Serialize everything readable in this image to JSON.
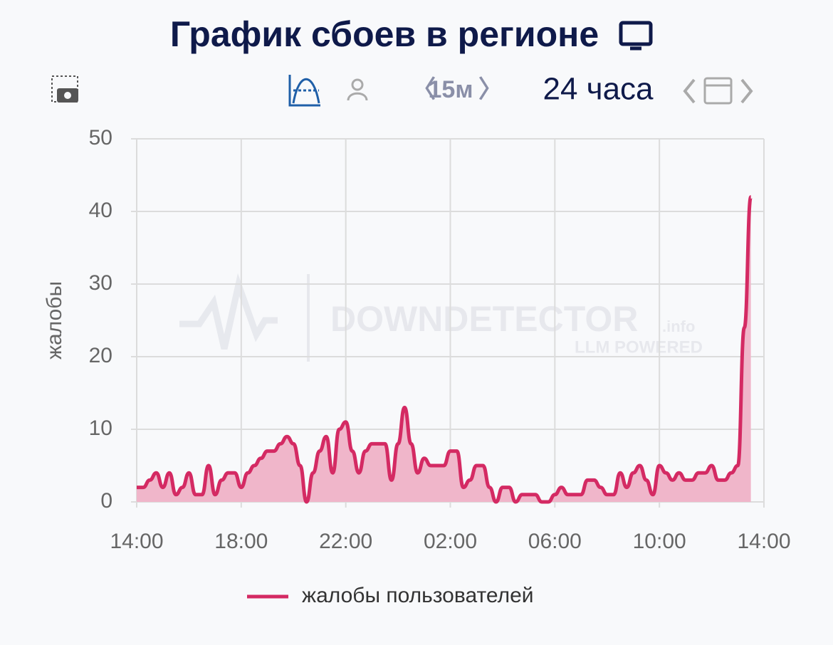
{
  "toolbar": {
    "interval": "15м",
    "range": "24 часа"
  },
  "chart_data": {
    "type": "line",
    "title": "График сбоев в регионе",
    "y_label": "жалобы",
    "watermark": {
      "brand": "DOWNDETECTOR",
      "suffix": ".info",
      "tagline": "LLM POWERED"
    },
    "categories": [
      "14:00",
      null,
      null,
      null,
      null,
      null,
      null,
      null,
      null,
      null,
      null,
      null,
      null,
      null,
      null,
      null,
      "18:00",
      null,
      null,
      null,
      null,
      null,
      null,
      null,
      null,
      null,
      null,
      null,
      null,
      null,
      null,
      null,
      "22:00",
      null,
      null,
      null,
      null,
      null,
      null,
      null,
      null,
      null,
      null,
      null,
      null,
      null,
      null,
      null,
      "02:00",
      null,
      null,
      null,
      null,
      null,
      null,
      null,
      null,
      null,
      null,
      null,
      null,
      null,
      null,
      null,
      "06:00",
      null,
      null,
      null,
      null,
      null,
      null,
      null,
      null,
      null,
      null,
      null,
      null,
      null,
      null,
      null,
      "10:00",
      null,
      null,
      null,
      null,
      null,
      null,
      null,
      null,
      null,
      null,
      null,
      null,
      null,
      null,
      null,
      "14:00"
    ],
    "series": [
      {
        "name": "жалобы пользователей",
        "color": "#d42a63",
        "fill": "#f0b6ca",
        "values": [
          2,
          2,
          3,
          4,
          2,
          4,
          1,
          2,
          4,
          1,
          1,
          5,
          1,
          3,
          4,
          4,
          2,
          4,
          5,
          6,
          7,
          7,
          8,
          9,
          8,
          5,
          0,
          4,
          7,
          9,
          4,
          10,
          11,
          7,
          4,
          7,
          8,
          8,
          8,
          3,
          8,
          13,
          8,
          4,
          6,
          5,
          5,
          5,
          7,
          7,
          2,
          3,
          5,
          5,
          2,
          0,
          2,
          2,
          0,
          1,
          1,
          1,
          0,
          0,
          1,
          2,
          1,
          1,
          1,
          3,
          3,
          2,
          1,
          1,
          4,
          2,
          4,
          5,
          3,
          1,
          5,
          4,
          3,
          4,
          3,
          3,
          4,
          4,
          5,
          3,
          3,
          4,
          5,
          24,
          42,
          null,
          null
        ]
      }
    ],
    "ylim": [
      0,
      50
    ],
    "yticks": [
      0,
      10,
      20,
      30,
      40,
      50
    ],
    "grid": true
  }
}
